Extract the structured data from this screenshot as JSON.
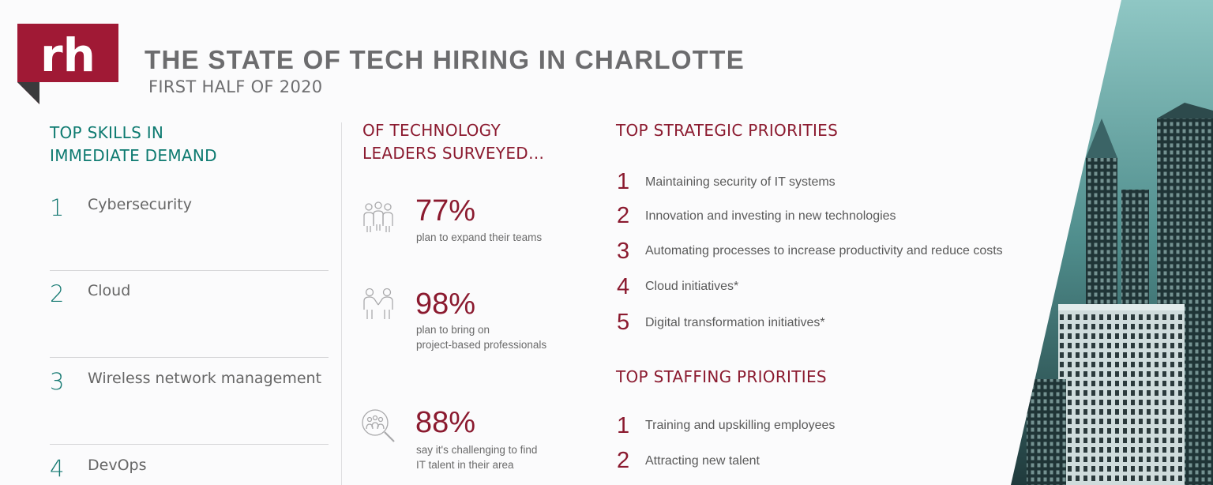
{
  "logo": {
    "text": "rh",
    "color": "#a01935"
  },
  "header": {
    "title": "THE STATE OF TECH HIRING IN CHARLOTTE",
    "subtitle": "FIRST HALF OF 2020"
  },
  "skills": {
    "heading_line1": "TOP SKILLS IN",
    "heading_line2": "IMMEDIATE DEMAND",
    "items": [
      {
        "num": "1",
        "label": "Cybersecurity"
      },
      {
        "num": "2",
        "label": "Cloud"
      },
      {
        "num": "3",
        "label": "Wireless network management"
      },
      {
        "num": "4",
        "label": "DevOps"
      }
    ]
  },
  "survey": {
    "heading_line1": "OF TECHNOLOGY",
    "heading_line2": "LEADERS SURVEYED…",
    "stats": [
      {
        "icon": "team-group-icon",
        "value": "77%",
        "line1": "plan to expand their teams",
        "line2": ""
      },
      {
        "icon": "handshake-people-icon",
        "value": "98%",
        "line1": "plan to bring on",
        "line2": "project-based professionals"
      },
      {
        "icon": "search-people-icon",
        "value": "88%",
        "line1": "say it's challenging to find",
        "line2": "IT talent in their area"
      }
    ]
  },
  "strategic": {
    "heading": "TOP STRATEGIC PRIORITIES",
    "items": [
      {
        "num": "1",
        "label": "Maintaining  security of IT systems"
      },
      {
        "num": "2",
        "label": "Innovation and investing in new technologies"
      },
      {
        "num": "3",
        "label": "Automating processes to increase productivity and reduce costs"
      },
      {
        "num": "4",
        "label": "Cloud initiatives*"
      },
      {
        "num": "5",
        "label": "Digital  transformation initiatives*"
      }
    ]
  },
  "staffing": {
    "heading": "TOP STAFFING PRIORITIES",
    "items": [
      {
        "num": "1",
        "label": "Training and upskilling employees"
      },
      {
        "num": "2",
        "label": "Attracting new talent"
      }
    ]
  },
  "colors": {
    "teal": "#0d7a70",
    "maroon": "#8b1a2f",
    "gray_text": "#666666"
  }
}
